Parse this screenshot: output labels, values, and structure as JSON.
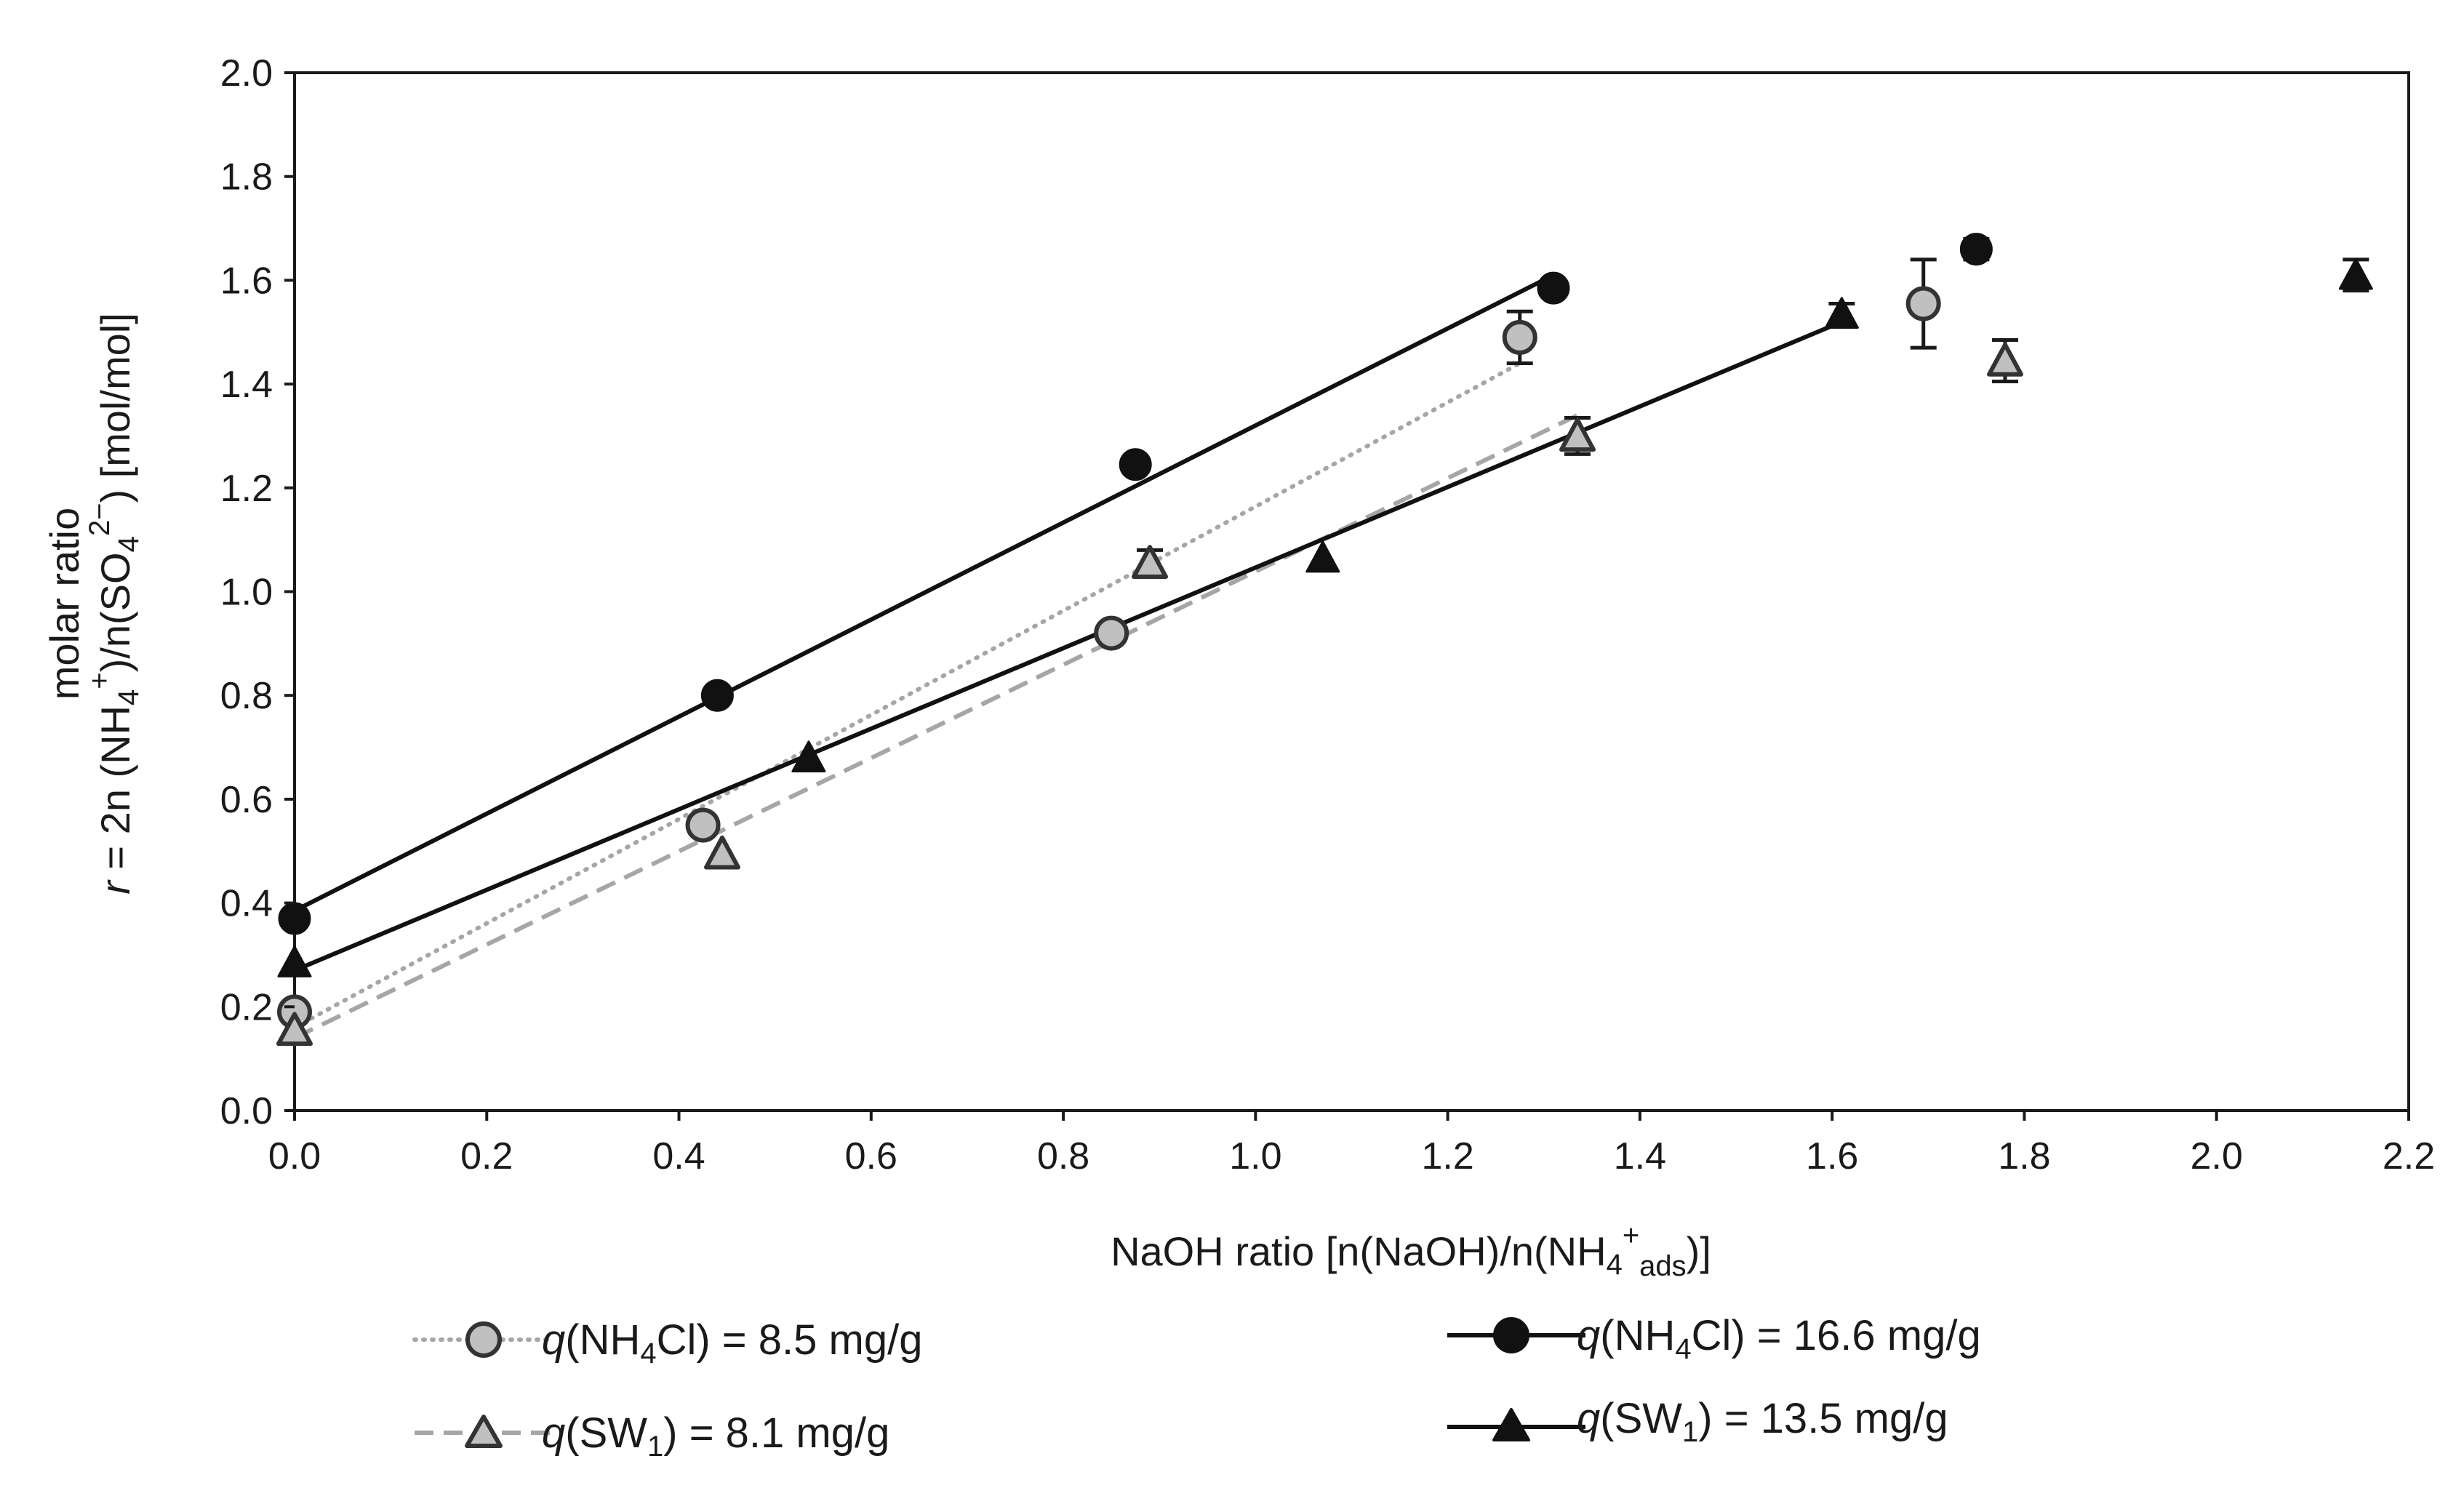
{
  "chart_data": {
    "type": "scatter",
    "title": "",
    "x_axis": {
      "label_parts": [
        "NaOH ratio [n(NaOH)/n(NH",
        "4",
        "+",
        "ads",
        ")]"
      ],
      "range": [
        0,
        2.2
      ],
      "ticks": [
        "0.0",
        "0.2",
        "0.4",
        "0.6",
        "0.8",
        "1.0",
        "1.2",
        "1.4",
        "1.6",
        "1.8",
        "2.0",
        "2.2"
      ]
    },
    "y_axis": {
      "label_line1": "molar ratio",
      "label_line2_parts": [
        "r",
        " = 2n (NH",
        "4",
        "+",
        ")/n(SO",
        "4",
        "2−",
        ") [mol/mol]"
      ],
      "range": [
        0,
        2.0
      ],
      "ticks": [
        "0.0",
        "0.2",
        "0.4",
        "0.6",
        "0.8",
        "1.0",
        "1.2",
        "1.4",
        "1.6",
        "1.8",
        "2.0"
      ]
    },
    "series": [
      {
        "id": "nh4cl-8-5",
        "legend_q": "q",
        "legend_open": "(NH",
        "legend_sub": "4",
        "legend_rest": "Cl) = 8.5 mg/g",
        "marker": "circle",
        "fill": "#c0c0c0",
        "stroke": "#333333",
        "line_color": "#a6a6a6",
        "line_style": "dotted",
        "points": [
          {
            "x": 0.0,
            "y": 0.19,
            "err": 0.0
          },
          {
            "x": 0.425,
            "y": 0.55,
            "err": 0.0
          },
          {
            "x": 0.85,
            "y": 0.92,
            "err": 0.0
          },
          {
            "x": 1.275,
            "y": 1.49,
            "err": 0.05
          },
          {
            "x": 1.695,
            "y": 1.555,
            "err": 0.085
          }
        ],
        "fit": {
          "x0": 0.0,
          "y0": 0.16,
          "x1": 1.275,
          "y1": 1.44
        }
      },
      {
        "id": "sw1-8-1",
        "legend_q": "q",
        "legend_open": "(SW",
        "legend_sub": "1",
        "legend_rest": ") = 8.1 mg/g",
        "marker": "triangle",
        "fill": "#c0c0c0",
        "stroke": "#333333",
        "line_color": "#a6a6a6",
        "line_style": "dashed",
        "points": [
          {
            "x": 0.0,
            "y": 0.155,
            "err": 0.0
          },
          {
            "x": 0.445,
            "y": 0.495,
            "err": 0.0
          },
          {
            "x": 0.89,
            "y": 1.055,
            "err": 0.025
          },
          {
            "x": 1.335,
            "y": 1.3,
            "err": 0.035
          },
          {
            "x": 1.78,
            "y": 1.445,
            "err": 0.04
          }
        ],
        "fit": {
          "x0": 0.0,
          "y0": 0.14,
          "x1": 1.335,
          "y1": 1.34
        }
      },
      {
        "id": "nh4cl-16-6",
        "legend_q": "q",
        "legend_open": "(NH",
        "legend_sub": "4",
        "legend_rest": "Cl) = 16.6 mg/g",
        "marker": "circle",
        "fill": "#111111",
        "stroke": "#111111",
        "line_color": "#111111",
        "line_style": "solid",
        "points": [
          {
            "x": 0.0,
            "y": 0.37,
            "err": 0.0
          },
          {
            "x": 0.44,
            "y": 0.8,
            "err": 0.0
          },
          {
            "x": 0.875,
            "y": 1.245,
            "err": 0.0
          },
          {
            "x": 1.31,
            "y": 1.585,
            "err": 0.0
          },
          {
            "x": 1.75,
            "y": 1.66,
            "err": 0.02
          }
        ],
        "fit": {
          "x0": 0.0,
          "y0": 0.385,
          "x1": 1.31,
          "y1": 1.61
        }
      },
      {
        "id": "sw1-13-5",
        "legend_q": "q",
        "legend_open": "(SW",
        "legend_sub": "1",
        "legend_rest": ") = 13.5 mg/g",
        "marker": "triangle",
        "fill": "#111111",
        "stroke": "#111111",
        "line_color": "#111111",
        "line_style": "solid",
        "points": [
          {
            "x": 0.0,
            "y": 0.285,
            "err": 0.0
          },
          {
            "x": 0.535,
            "y": 0.68,
            "err": 0.0
          },
          {
            "x": 1.07,
            "y": 1.065,
            "err": 0.0
          },
          {
            "x": 1.61,
            "y": 1.535,
            "err": 0.02
          },
          {
            "x": 2.145,
            "y": 1.61,
            "err": 0.03
          }
        ],
        "fit": {
          "x0": 0.0,
          "y0": 0.27,
          "x1": 1.61,
          "y1": 1.52
        }
      }
    ],
    "legend_position": "bottom",
    "grid": false
  }
}
